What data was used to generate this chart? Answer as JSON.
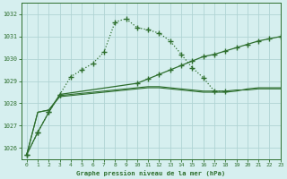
{
  "title": "Graphe pression niveau de la mer (hPa)",
  "background_color": "#d6efef",
  "grid_color": "#b0d4d4",
  "line_color": "#2d6e2d",
  "marker_color": "#2d6e2d",
  "xlim": [
    -0.5,
    23
  ],
  "ylim": [
    1025.5,
    1032.5
  ],
  "yticks": [
    1026,
    1027,
    1028,
    1029,
    1030,
    1031,
    1032
  ],
  "xticks": [
    0,
    1,
    2,
    3,
    4,
    5,
    6,
    7,
    8,
    9,
    10,
    11,
    12,
    13,
    14,
    15,
    16,
    17,
    18,
    19,
    20,
    21,
    22,
    23
  ],
  "series": [
    {
      "x": [
        0,
        1,
        2,
        3,
        4,
        5,
        6,
        7,
        8,
        9,
        10,
        11,
        12,
        13,
        14,
        15,
        16,
        17,
        18,
        19,
        20,
        21,
        22,
        23
      ],
      "y": [
        1025.7,
        1026.7,
        1027.6,
        1028.4,
        1029.2,
        1029.5,
        1029.8,
        1030.3,
        1031.65,
        1031.8,
        1031.4,
        1031.3,
        1031.15,
        1030.8,
        1030.2,
        1029.6,
        1029.15,
        1028.55,
        1028.55,
        null,
        null,
        null,
        null,
        null
      ]
    },
    {
      "x": [
        0,
        1,
        2,
        3,
        10,
        11,
        12,
        13,
        14,
        15,
        16,
        17,
        18,
        19,
        20,
        21,
        22,
        23
      ],
      "y": [
        1025.7,
        1026.7,
        1027.6,
        1028.4,
        1028.9,
        1029.1,
        1029.3,
        1029.5,
        1029.7,
        1029.9,
        1030.1,
        1030.2,
        1030.35,
        1030.5,
        1030.65,
        1030.8,
        1030.9,
        1031.0
      ]
    },
    {
      "x": [
        0,
        1,
        2,
        3,
        4,
        5,
        6,
        7,
        8,
        9,
        10,
        11,
        12,
        13,
        14,
        15,
        16,
        17,
        18,
        19,
        20,
        21,
        22,
        23
      ],
      "y": [
        1025.7,
        1027.6,
        1027.7,
        1028.3,
        1028.35,
        1028.4,
        1028.45,
        1028.5,
        1028.55,
        1028.6,
        1028.65,
        1028.7,
        1028.7,
        1028.65,
        1028.6,
        1028.55,
        1028.5,
        1028.5,
        1028.5,
        1028.55,
        1028.65,
        1028.7,
        1028.7,
        1028.7
      ]
    },
    {
      "x": [
        0,
        1,
        2,
        3,
        4,
        5,
        6,
        7,
        8,
        9,
        10,
        11,
        12,
        13,
        14,
        15,
        16,
        17,
        18,
        19,
        20,
        21,
        22,
        23
      ],
      "y": [
        1025.7,
        1027.6,
        1027.7,
        1028.35,
        1028.4,
        1028.45,
        1028.5,
        1028.55,
        1028.6,
        1028.65,
        1028.7,
        1028.75,
        1028.75,
        1028.7,
        1028.65,
        1028.6,
        1028.55,
        1028.55,
        1028.55,
        1028.6,
        1028.6,
        1028.65,
        1028.65,
        1028.65
      ]
    }
  ]
}
